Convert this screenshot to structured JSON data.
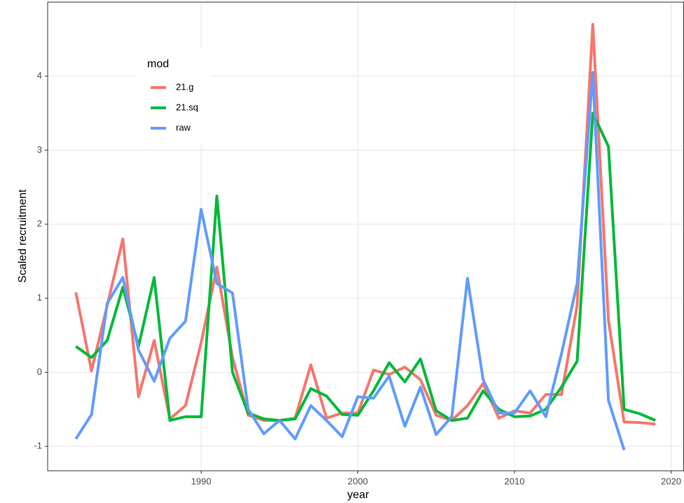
{
  "chart_data": {
    "type": "line",
    "x_label": "year",
    "y_label": "Scaled recruitment",
    "legend_title": "mod",
    "legend_position": "top-left",
    "grid": true,
    "x": [
      1982,
      1983,
      1984,
      1985,
      1986,
      1987,
      1988,
      1989,
      1990,
      1991,
      1992,
      1993,
      1994,
      1995,
      1996,
      1997,
      1998,
      1999,
      2000,
      2001,
      2002,
      2003,
      2004,
      2005,
      2006,
      2007,
      2008,
      2009,
      2010,
      2011,
      2012,
      2013,
      2014,
      2015,
      2016,
      2017,
      2018,
      2019
    ],
    "xlim": [
      1980.2,
      2020.8
    ],
    "xticks": [
      1990,
      2000,
      2010,
      2020
    ],
    "ylim": [
      -1.33,
      5.0
    ],
    "yticks": [
      -1,
      0,
      1,
      2,
      3,
      4
    ],
    "series": [
      {
        "name": "21.g",
        "color": "#F8766D",
        "values": [
          1.08,
          0.02,
          0.9,
          1.8,
          -0.33,
          0.43,
          -0.63,
          -0.45,
          0.4,
          1.42,
          0.2,
          -0.58,
          -0.65,
          -0.65,
          -0.62,
          0.1,
          -0.62,
          -0.55,
          -0.55,
          0.03,
          -0.03,
          0.07,
          -0.1,
          -0.58,
          -0.65,
          -0.45,
          -0.15,
          -0.62,
          -0.52,
          -0.55,
          -0.3,
          -0.3,
          0.9,
          4.7,
          0.7,
          -0.67,
          -0.68,
          -0.7
        ]
      },
      {
        "name": "21.sq",
        "color": "#00BA38",
        "values": [
          0.35,
          0.2,
          0.43,
          1.15,
          0.35,
          1.28,
          -0.65,
          -0.6,
          -0.6,
          2.38,
          0.0,
          -0.55,
          -0.63,
          -0.65,
          -0.63,
          -0.22,
          -0.32,
          -0.57,
          -0.58,
          -0.25,
          0.13,
          -0.13,
          0.18,
          -0.52,
          -0.65,
          -0.62,
          -0.25,
          -0.5,
          -0.6,
          -0.59,
          -0.5,
          -0.2,
          0.15,
          3.5,
          3.05,
          -0.5,
          -0.56,
          -0.65
        ]
      },
      {
        "name": "raw",
        "color": "#619CFF",
        "values": [
          -0.9,
          -0.57,
          0.93,
          1.28,
          0.3,
          -0.12,
          0.46,
          0.69,
          2.2,
          1.2,
          1.07,
          -0.5,
          -0.83,
          -0.65,
          -0.9,
          -0.45,
          -0.65,
          -0.87,
          -0.33,
          -0.35,
          -0.05,
          -0.73,
          -0.2,
          -0.84,
          -0.6,
          1.27,
          -0.1,
          -0.55,
          -0.55,
          -0.25,
          -0.6,
          0.25,
          1.2,
          4.05,
          -0.38,
          -1.05,
          null,
          null
        ]
      }
    ]
  }
}
